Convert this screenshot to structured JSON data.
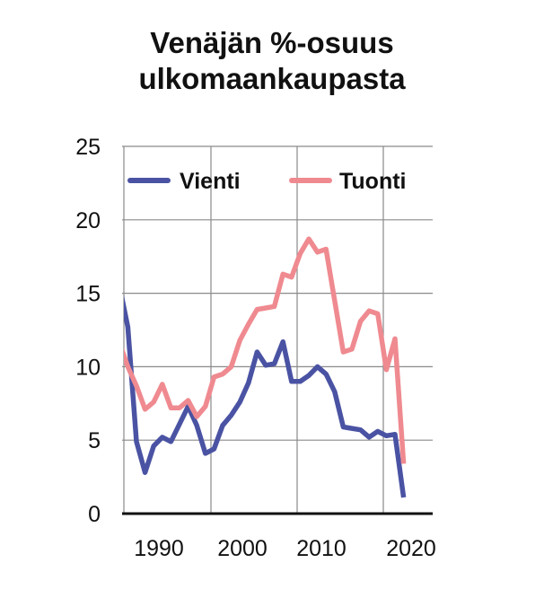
{
  "chart_data": {
    "type": "line",
    "title_lines": [
      "Venäjän %-osuus",
      "ulkomaankaupasta"
    ],
    "xlabel": "",
    "ylabel": "",
    "ylim": [
      0,
      25
    ],
    "yticks": [
      0,
      5,
      10,
      15,
      20,
      25
    ],
    "xtick_labels": [
      "1990",
      "2000",
      "2010",
      "2020"
    ],
    "grid": true,
    "legend_position": "top",
    "x": [
      1989,
      1990,
      1991,
      1992,
      1993,
      1994,
      1995,
      1996,
      1997,
      1998,
      1999,
      2000,
      2001,
      2002,
      2003,
      2004,
      2005,
      2006,
      2007,
      2008,
      2009,
      2010,
      2011,
      2012,
      2013,
      2014,
      2015,
      2016,
      2017,
      2018,
      2019,
      2020,
      2021,
      2022
    ],
    "series": [
      {
        "name": "Vienti",
        "color": "#4a53a3",
        "values": [
          15.6,
          12.7,
          4.9,
          2.8,
          4.6,
          5.2,
          4.9,
          6.1,
          7.3,
          6.0,
          4.1,
          4.4,
          6.0,
          6.7,
          7.6,
          8.9,
          11.0,
          10.1,
          10.2,
          11.7,
          9.0,
          9.0,
          9.4,
          10.0,
          9.5,
          8.3,
          5.9,
          5.8,
          5.7,
          5.2,
          5.6,
          5.3,
          5.4,
          1.1
        ]
      },
      {
        "name": "Tuonti",
        "color": "#ef8a90",
        "values": [
          11.7,
          10.0,
          8.7,
          7.1,
          7.6,
          8.8,
          7.2,
          7.2,
          7.7,
          6.6,
          7.3,
          9.3,
          9.5,
          10.0,
          11.8,
          12.9,
          13.9,
          14.0,
          14.1,
          16.3,
          16.1,
          17.7,
          18.7,
          17.8,
          18.0,
          14.5,
          11.0,
          11.2,
          13.1,
          13.8,
          13.6,
          9.8,
          11.9,
          3.4
        ]
      }
    ]
  }
}
